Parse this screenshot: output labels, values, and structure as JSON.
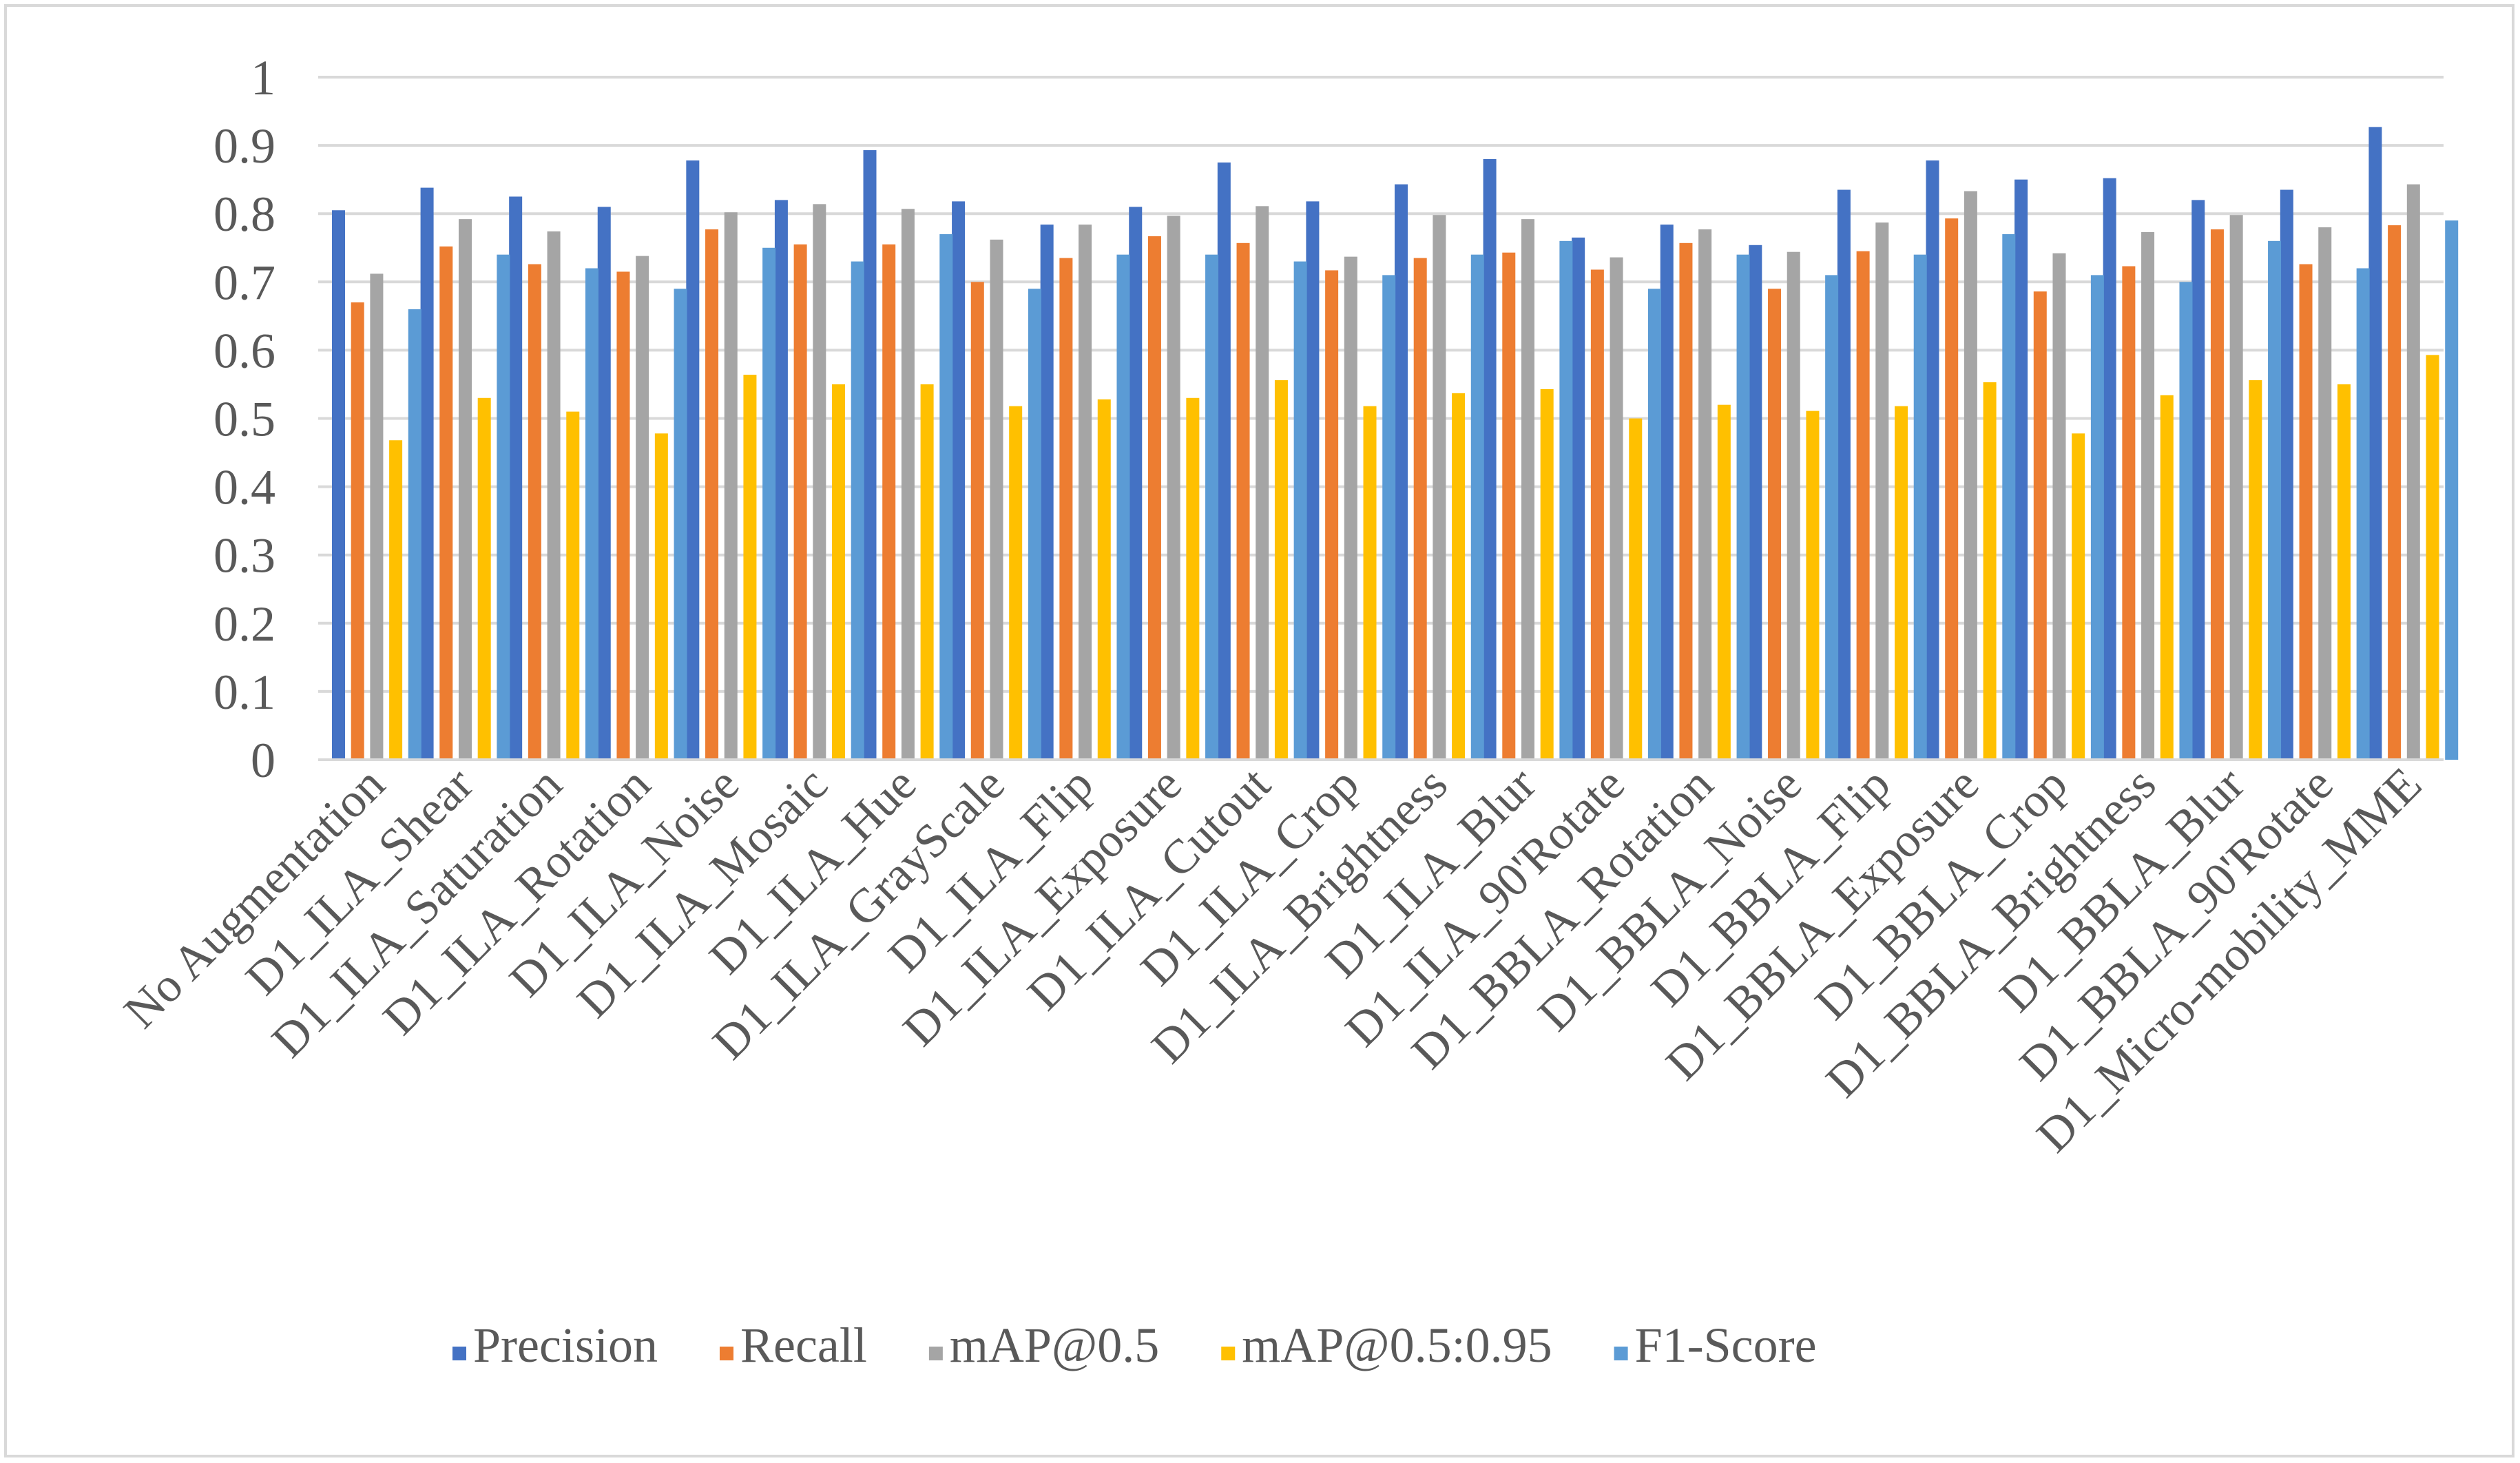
{
  "chart_data": {
    "type": "bar",
    "title": "",
    "xlabel": "",
    "ylabel": "",
    "ylim": [
      0,
      1
    ],
    "yticks": [
      "0",
      "0.1",
      "0.2",
      "0.3",
      "0.4",
      "0.5",
      "0.6",
      "0.7",
      "0.8",
      "0.9",
      "1"
    ],
    "grid": true,
    "legend_position": "bottom",
    "categories": [
      "No Augmentation",
      "D1_ILA_Shear",
      "D1_ILA_Saturation",
      "D1_ILA_Rotation",
      "D1_ILA_Noise",
      "D1_ILA_Mosaic",
      "D1_ILA_Hue",
      "D1_ILA_GrayScale",
      "D1_ILA_Flip",
      "D1_ILA_Exposure",
      "D1_ILA_Cutout",
      "D1_ILA_Crop",
      "D1_ILA_Brightness",
      "D1_ILA_Blur",
      "D1_ILA_90'Rotate",
      "D1_BBLA_Rotation",
      "D1_BBLA_Noise",
      "D1_BBLA_Flip",
      "D1_BBLA_Exposure",
      "D1_BBLA_Crop",
      "D1_BBLA_Brightness",
      "D1_BBLA_Blur",
      "D1_BBLA_90'Rotate",
      "D1_Micro-mobility_MME"
    ],
    "series": [
      {
        "name": "Precision",
        "color": "#4472c4",
        "values": [
          0.805,
          0.838,
          0.825,
          0.81,
          0.878,
          0.82,
          0.893,
          0.818,
          0.784,
          0.81,
          0.875,
          0.818,
          0.843,
          0.88,
          0.765,
          0.784,
          0.754,
          0.835,
          0.878,
          0.85,
          0.852,
          0.82,
          0.835,
          0.927
        ]
      },
      {
        "name": "Recall",
        "color": "#ed7d31",
        "values": [
          0.67,
          0.752,
          0.726,
          0.715,
          0.777,
          0.755,
          0.755,
          0.7,
          0.735,
          0.767,
          0.757,
          0.717,
          0.735,
          0.743,
          0.718,
          0.757,
          0.69,
          0.745,
          0.793,
          0.686,
          0.723,
          0.777,
          0.726,
          0.783
        ]
      },
      {
        "name": "mAP@0.5",
        "color": "#a5a5a5",
        "values": [
          0.712,
          0.792,
          0.774,
          0.738,
          0.802,
          0.814,
          0.807,
          0.762,
          0.784,
          0.797,
          0.811,
          0.737,
          0.798,
          0.792,
          0.736,
          0.777,
          0.744,
          0.787,
          0.833,
          0.742,
          0.773,
          0.798,
          0.78,
          0.843
        ]
      },
      {
        "name": "mAP@0.5:0.95",
        "color": "#ffc000",
        "values": [
          0.468,
          0.53,
          0.51,
          0.478,
          0.564,
          0.55,
          0.55,
          0.518,
          0.528,
          0.53,
          0.556,
          0.518,
          0.537,
          0.543,
          0.5,
          0.52,
          0.511,
          0.518,
          0.553,
          0.478,
          0.534,
          0.556,
          0.55,
          0.593
        ]
      },
      {
        "name": "F1-Score",
        "color": "#5b9bd5",
        "values": [
          0.66,
          0.74,
          0.72,
          0.69,
          0.75,
          0.73,
          0.77,
          0.69,
          0.74,
          0.74,
          0.73,
          0.71,
          0.74,
          0.76,
          0.69,
          0.74,
          0.71,
          0.74,
          0.77,
          0.71,
          0.7,
          0.76,
          0.72,
          0.79
        ]
      }
    ],
    "gridline_color": "#d9d9d9",
    "axis_color": "#d9d9d9"
  }
}
